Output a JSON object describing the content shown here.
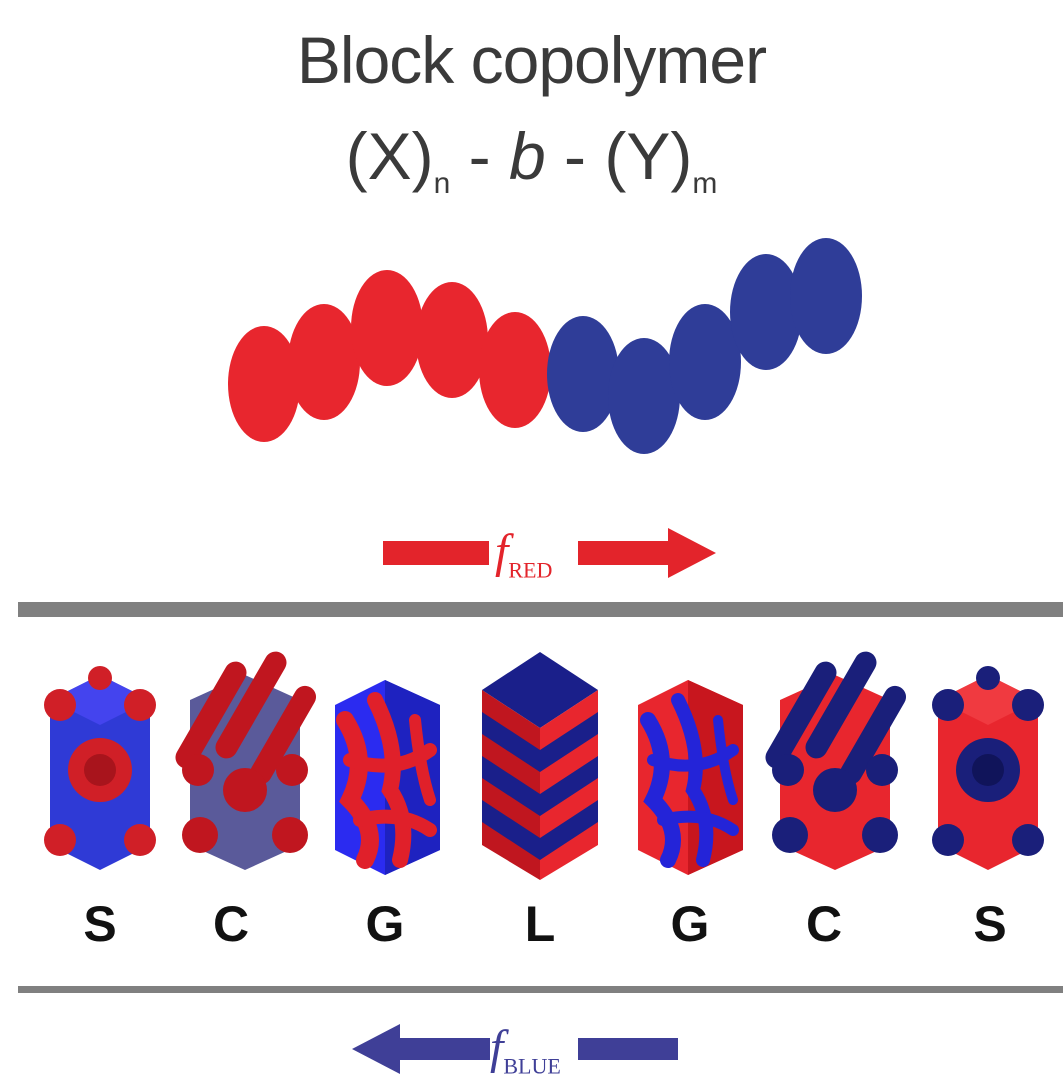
{
  "title": {
    "line1": "Block copolymer",
    "formula": {
      "x": "(X)",
      "n": "n",
      "b": "b",
      "y": "(Y)",
      "m": "m",
      "sep": " - "
    }
  },
  "arrows": {
    "red": {
      "f": "f",
      "sub": "RED",
      "color": "#e3242b"
    },
    "blue": {
      "f": "f",
      "sub": "BLUE",
      "color": "#3f3f97"
    }
  },
  "phases": [
    {
      "label": "S"
    },
    {
      "label": "C"
    },
    {
      "label": "G"
    },
    {
      "label": "L"
    },
    {
      "label": "G"
    },
    {
      "label": "C"
    },
    {
      "label": "S"
    }
  ],
  "colors": {
    "red": "#e8262e",
    "blue": "#2f3d98",
    "bright_blue": "#2b2bf0",
    "dark_blue": "#1a1f7a",
    "divider": "#808080"
  }
}
